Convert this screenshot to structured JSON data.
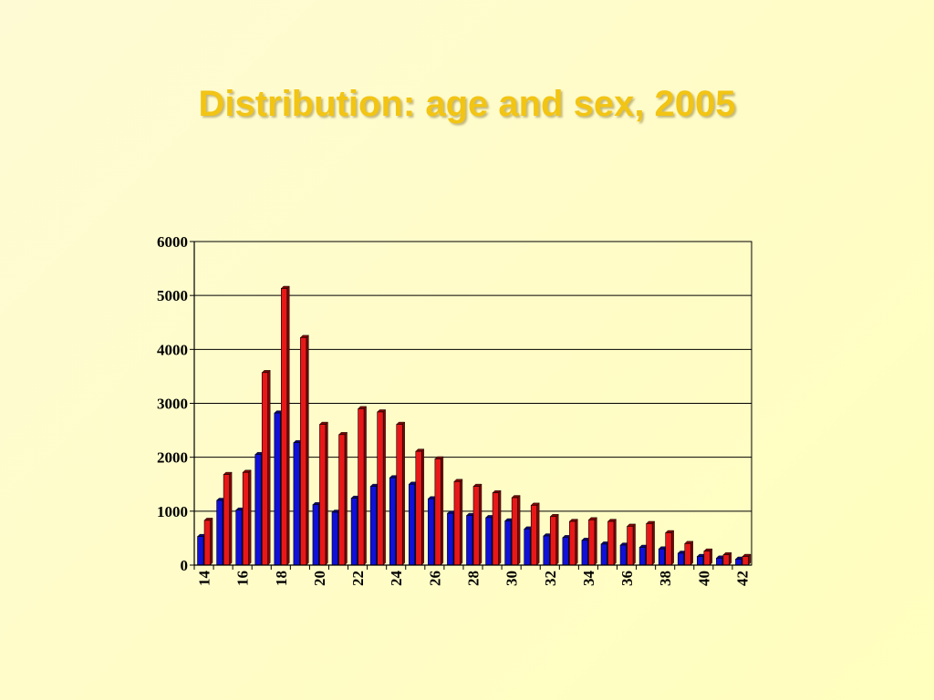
{
  "slide": {
    "title": "Distribution: age and sex,  2005"
  },
  "colors": {
    "series1": "#1010d8",
    "series2": "#e81818",
    "title": "#f2c414"
  },
  "chart_data": {
    "type": "bar",
    "title": "Distribution: age and sex,  2005",
    "xlabel": "",
    "ylabel": "",
    "ylim": [
      0,
      6000
    ],
    "yticks": [
      0,
      1000,
      2000,
      3000,
      4000,
      5000,
      6000
    ],
    "grid": true,
    "legend": "none",
    "categories": [
      14,
      15,
      16,
      17,
      18,
      19,
      20,
      21,
      22,
      23,
      24,
      25,
      26,
      27,
      28,
      29,
      30,
      31,
      32,
      33,
      34,
      35,
      36,
      37,
      38,
      39,
      40,
      41,
      42
    ],
    "xtick_labels": [
      "14",
      "16",
      "18",
      "20",
      "22",
      "24",
      "26",
      "28",
      "30",
      "32",
      "34",
      "36",
      "38",
      "40",
      "42"
    ],
    "series": [
      {
        "color": "#1010d8",
        "values": [
          530,
          1200,
          1020,
          2050,
          2820,
          2270,
          1120,
          980,
          1240,
          1460,
          1620,
          1500,
          1230,
          960,
          920,
          880,
          820,
          670,
          540,
          510,
          460,
          390,
          370,
          330,
          300,
          220,
          160,
          130,
          110
        ]
      },
      {
        "color": "#e81818",
        "values": [
          830,
          1680,
          1720,
          3570,
          5130,
          4220,
          2610,
          2420,
          2900,
          2840,
          2610,
          2110,
          1970,
          1550,
          1460,
          1340,
          1250,
          1110,
          900,
          810,
          840,
          810,
          720,
          770,
          600,
          400,
          260,
          190,
          160
        ]
      }
    ]
  }
}
